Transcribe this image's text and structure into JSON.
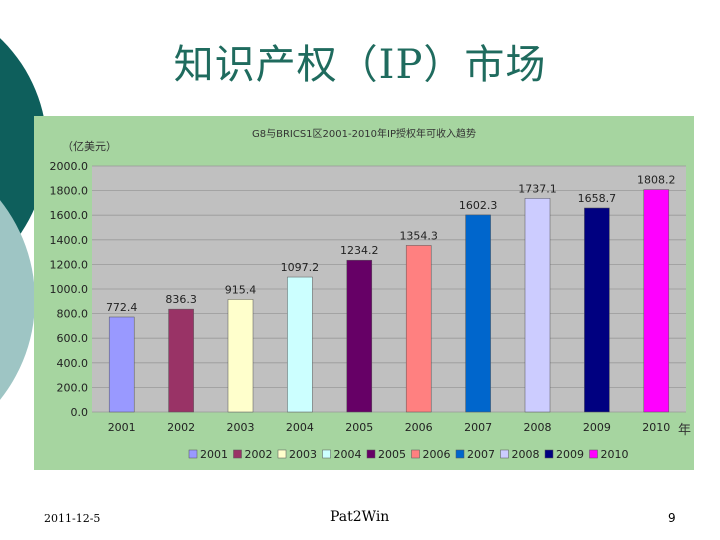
{
  "slide": {
    "title": "知识产权（IP）市场",
    "footer_date": "2011-12-5",
    "footer_brand": "Pat2Win",
    "page_number": "9"
  },
  "colors": {
    "title": "#1f6b5e",
    "panel_bg": "#a6d5a0",
    "plot_bg": "#c0c0c0",
    "deco_dark": "#0e5f5c",
    "deco_light": "#9ec5c4"
  },
  "chart_data": {
    "type": "bar",
    "title": "G8与BRICS1区2001-2010年IP授权年可收入趋势",
    "ylabel": "（亿美元）",
    "xlabel": "年",
    "categories": [
      "2001",
      "2002",
      "2003",
      "2004",
      "2005",
      "2006",
      "2007",
      "2008",
      "2009",
      "2010"
    ],
    "values": [
      772.4,
      836.3,
      915.4,
      1097.2,
      1234.2,
      1354.3,
      1602.3,
      1737.1,
      1658.7,
      1808.2
    ],
    "value_labels": [
      "772.4",
      "836.3",
      "915.4",
      "1097.2",
      "1234.2",
      "1354.3",
      "1602.3",
      "1737.1",
      "1658.7",
      "1808.2"
    ],
    "bar_colors": [
      "#9999ff",
      "#993366",
      "#ffffcc",
      "#ccffff",
      "#660066",
      "#ff8080",
      "#0066cc",
      "#ccccff",
      "#000080",
      "#ff00ff"
    ],
    "ylim": [
      0,
      2000
    ],
    "yticks": [
      "0.0",
      "200.0",
      "400.0",
      "600.0",
      "800.0",
      "1000.0",
      "1200.0",
      "1400.0",
      "1600.0",
      "1800.0",
      "2000.0"
    ],
    "ytick_values": [
      0,
      200,
      400,
      600,
      800,
      1000,
      1200,
      1400,
      1600,
      1800,
      2000
    ],
    "grid": true,
    "legend_position": "bottom"
  }
}
